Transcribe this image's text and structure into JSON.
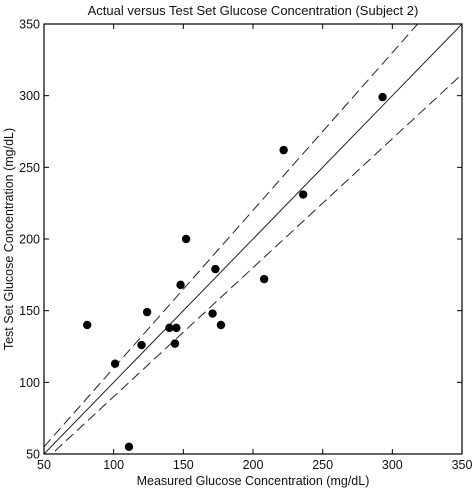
{
  "chart_data": {
    "type": "scatter",
    "title": "Actual versus Test Set Glucose Concentration (Subject 2)",
    "xlabel": "Measured Glucose Concentration (mg/dL)",
    "ylabel": "Test Set Glucose Concentration (mg/dL)",
    "xlim": [
      50,
      350
    ],
    "ylim": [
      50,
      350
    ],
    "xticks": [
      50,
      100,
      150,
      200,
      250,
      300,
      350
    ],
    "yticks": [
      50,
      100,
      150,
      200,
      250,
      300,
      350
    ],
    "grid": false,
    "points": [
      {
        "x": 81,
        "y": 140
      },
      {
        "x": 101,
        "y": 113
      },
      {
        "x": 111,
        "y": 55
      },
      {
        "x": 120,
        "y": 126
      },
      {
        "x": 124,
        "y": 149
      },
      {
        "x": 140,
        "y": 138
      },
      {
        "x": 144,
        "y": 127
      },
      {
        "x": 145,
        "y": 138
      },
      {
        "x": 148,
        "y": 168
      },
      {
        "x": 152,
        "y": 200
      },
      {
        "x": 171,
        "y": 148
      },
      {
        "x": 173,
        "y": 179
      },
      {
        "x": 177,
        "y": 140
      },
      {
        "x": 208,
        "y": 172
      },
      {
        "x": 222,
        "y": 262
      },
      {
        "x": 236,
        "y": 231
      },
      {
        "x": 293,
        "y": 299
      }
    ],
    "reference_lines": [
      {
        "style": "solid",
        "x": [
          50,
          350
        ],
        "y": [
          50,
          350
        ]
      },
      {
        "style": "dashed",
        "x": [
          50,
          350
        ],
        "y": [
          55,
          385
        ]
      },
      {
        "style": "dashed",
        "x": [
          50,
          350
        ],
        "y": [
          45,
          315
        ]
      }
    ]
  }
}
